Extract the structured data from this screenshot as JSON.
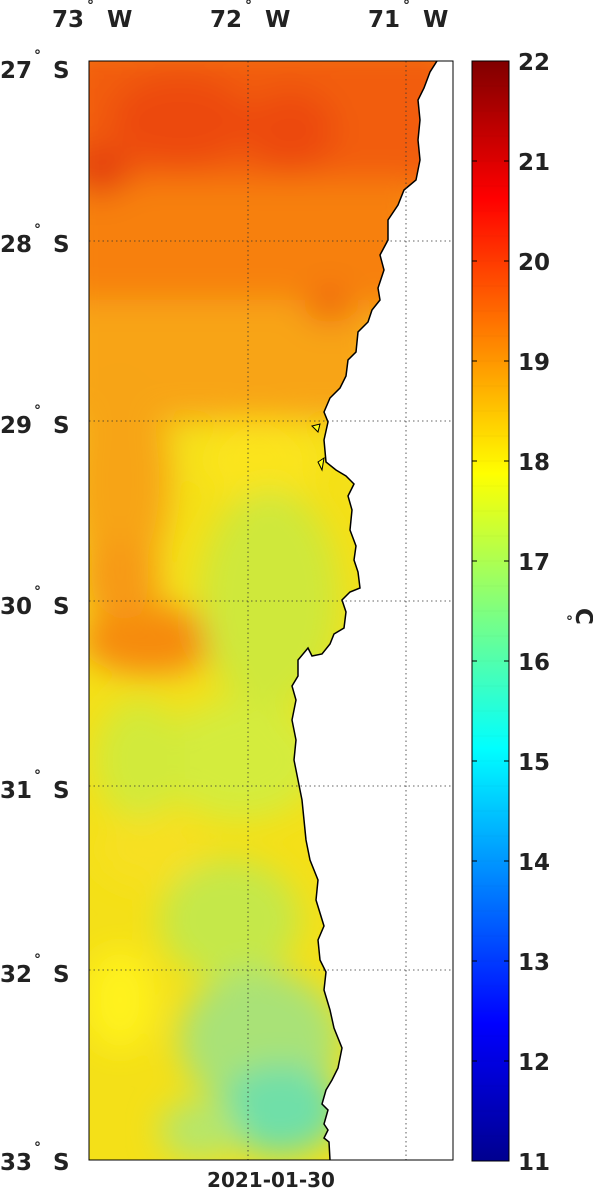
{
  "map": {
    "lon_labels": [
      {
        "deg": "73",
        "hemi": "W"
      },
      {
        "deg": "72",
        "hemi": "W"
      },
      {
        "deg": "71",
        "hemi": "W"
      }
    ],
    "lat_labels": [
      {
        "deg": "27",
        "hemi": "S"
      },
      {
        "deg": "28",
        "hemi": "S"
      },
      {
        "deg": "29",
        "hemi": "S"
      },
      {
        "deg": "30",
        "hemi": "S"
      },
      {
        "deg": "31",
        "hemi": "S"
      },
      {
        "deg": "32",
        "hemi": "S"
      },
      {
        "deg": "33",
        "hemi": "S"
      }
    ],
    "degree_symbol": "°",
    "date": "2021-01-30",
    "extent": {
      "lon": [
        -73.0,
        -70.7
      ],
      "lat": [
        -33.0,
        -26.95
      ]
    }
  },
  "colorbar": {
    "ticks": [
      "22",
      "21",
      "20",
      "19",
      "18",
      "17",
      "16",
      "15",
      "14",
      "13",
      "12",
      "11"
    ],
    "min": 11,
    "max": 22,
    "unit_symbol": "°",
    "unit": "C"
  }
}
